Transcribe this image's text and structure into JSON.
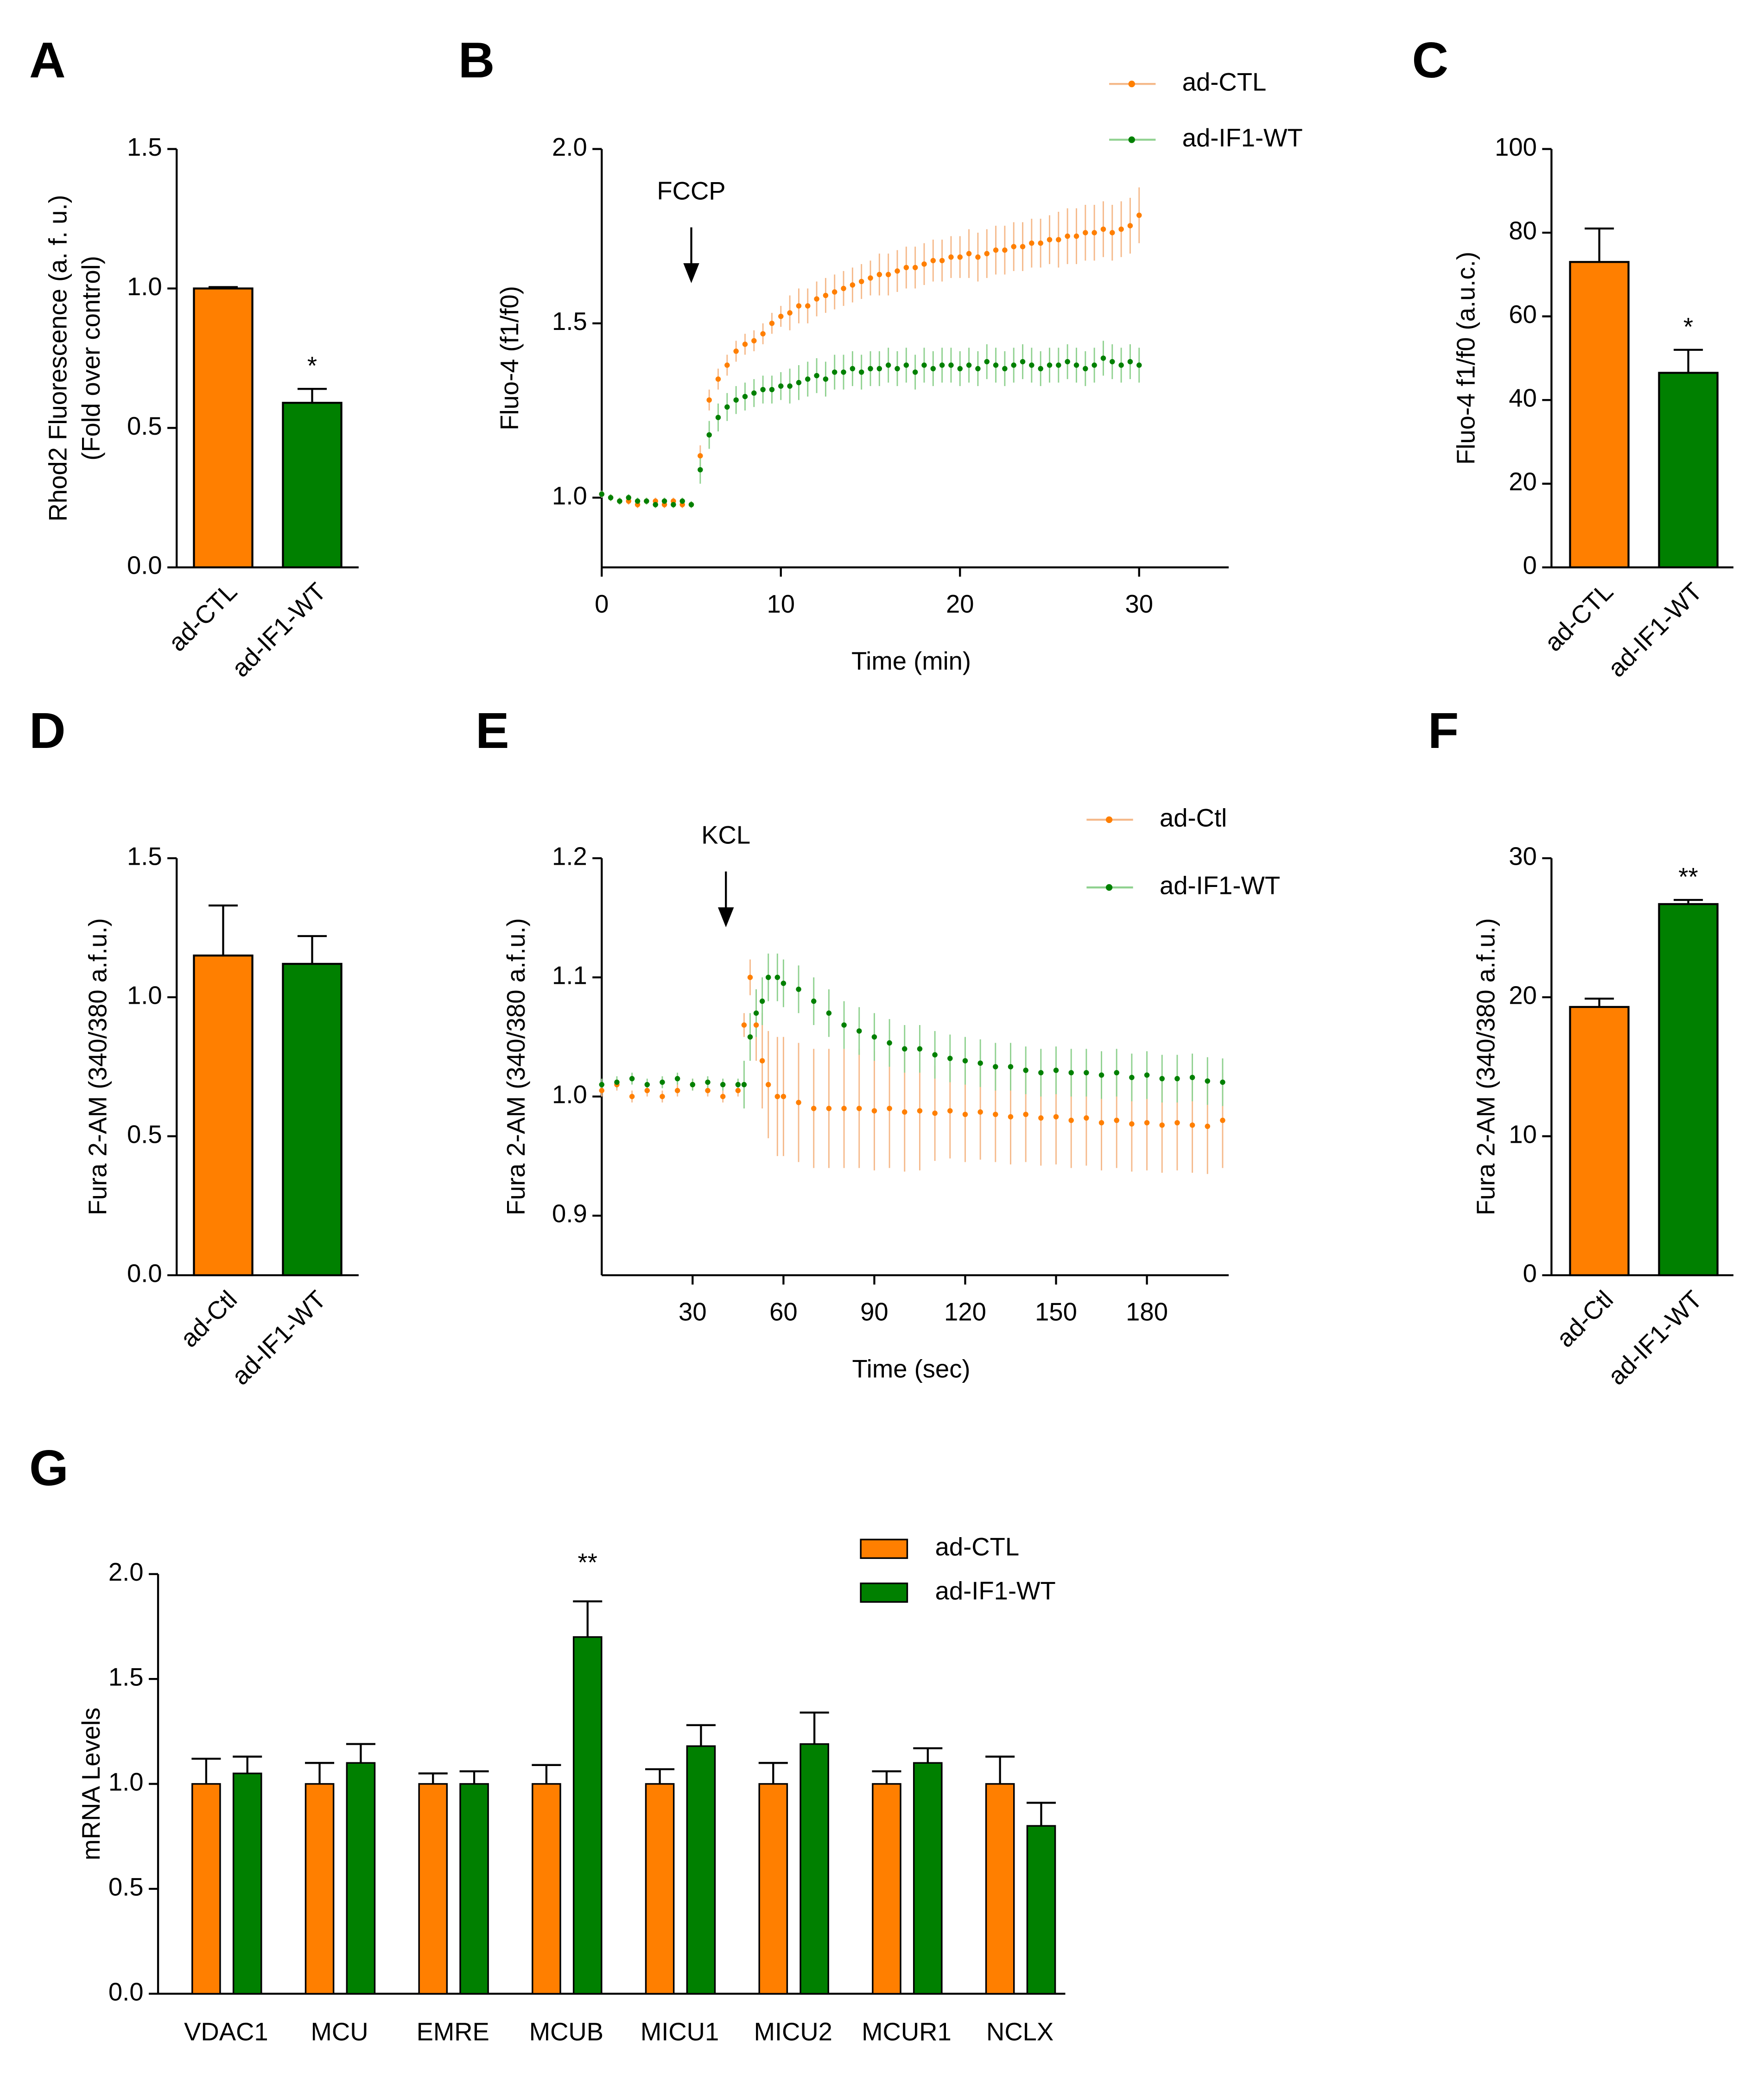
{
  "chart_data": [
    {
      "type": "bar",
      "panel": "A",
      "ylabel": [
        "Rhod2 Fluorescence (a. f. u.)",
        "(Fold over control)"
      ],
      "categories": [
        "ad-CTL",
        "ad-IF1-WT"
      ],
      "values": [
        1.0,
        0.59
      ],
      "errors": [
        0.005,
        0.05
      ],
      "colors": [
        "#ff7f00",
        "#008000"
      ],
      "stars": [
        null,
        "*"
      ],
      "ylim": [
        0,
        1.5
      ],
      "yticks": [
        {
          "value": 0,
          "label": "0.0"
        },
        {
          "value": 0.5,
          "label": "0.5"
        },
        {
          "value": 1,
          "label": "1.0"
        },
        {
          "value": 1.5,
          "label": "1.5"
        }
      ]
    },
    {
      "type": "line",
      "panel": "B",
      "ylabel": "Fluo-4 (f1/f0)",
      "xlabel": "Time (min)",
      "x": [
        0,
        0.5,
        1,
        1.5,
        2,
        2.5,
        3,
        3.5,
        4,
        4.5,
        5,
        5.5,
        6,
        6.5,
        7,
        7.5,
        8,
        8.5,
        9,
        9.5,
        10,
        10.5,
        11,
        11.5,
        12,
        12.5,
        13,
        13.5,
        14,
        14.5,
        15,
        15.5,
        16,
        16.5,
        17,
        17.5,
        18,
        18.5,
        19,
        19.5,
        20,
        20.5,
        21,
        21.5,
        22,
        22.5,
        23,
        23.5,
        24,
        24.5,
        25,
        25.5,
        26,
        26.5,
        27,
        27.5,
        28,
        28.5,
        29,
        29.5,
        30
      ],
      "series": [
        {
          "name": "ad-CTL",
          "color": "#ff7f00",
          "values": [
            1.01,
            1.0,
            0.99,
            0.99,
            0.98,
            0.99,
            0.99,
            0.98,
            0.99,
            0.98,
            0.98,
            1.12,
            1.28,
            1.34,
            1.38,
            1.42,
            1.44,
            1.45,
            1.47,
            1.5,
            1.52,
            1.53,
            1.55,
            1.55,
            1.57,
            1.58,
            1.59,
            1.6,
            1.61,
            1.62,
            1.63,
            1.64,
            1.64,
            1.65,
            1.66,
            1.66,
            1.67,
            1.68,
            1.68,
            1.69,
            1.69,
            1.7,
            1.69,
            1.7,
            1.71,
            1.71,
            1.72,
            1.72,
            1.73,
            1.73,
            1.74,
            1.74,
            1.75,
            1.75,
            1.76,
            1.76,
            1.77,
            1.76,
            1.77,
            1.78,
            1.81
          ],
          "errors": [
            0.01,
            0.01,
            0.01,
            0.01,
            0.01,
            0.01,
            0.01,
            0.01,
            0.01,
            0.01,
            0.01,
            0.03,
            0.03,
            0.03,
            0.03,
            0.03,
            0.03,
            0.03,
            0.03,
            0.03,
            0.03,
            0.05,
            0.05,
            0.05,
            0.05,
            0.05,
            0.05,
            0.05,
            0.05,
            0.05,
            0.05,
            0.06,
            0.06,
            0.06,
            0.06,
            0.06,
            0.06,
            0.06,
            0.06,
            0.06,
            0.06,
            0.07,
            0.07,
            0.07,
            0.07,
            0.07,
            0.07,
            0.07,
            0.07,
            0.07,
            0.07,
            0.08,
            0.08,
            0.08,
            0.08,
            0.08,
            0.08,
            0.08,
            0.08,
            0.08,
            0.08
          ]
        },
        {
          "name": "ad-IF1-WT",
          "color": "#008000",
          "values": [
            1.01,
            1.0,
            0.99,
            1.0,
            0.99,
            0.99,
            0.98,
            0.99,
            0.98,
            0.99,
            0.98,
            1.08,
            1.18,
            1.23,
            1.26,
            1.28,
            1.29,
            1.3,
            1.31,
            1.31,
            1.32,
            1.32,
            1.33,
            1.34,
            1.35,
            1.34,
            1.36,
            1.36,
            1.37,
            1.36,
            1.37,
            1.37,
            1.38,
            1.37,
            1.38,
            1.36,
            1.38,
            1.37,
            1.38,
            1.38,
            1.37,
            1.38,
            1.37,
            1.39,
            1.38,
            1.37,
            1.38,
            1.39,
            1.38,
            1.37,
            1.38,
            1.38,
            1.39,
            1.38,
            1.37,
            1.38,
            1.4,
            1.39,
            1.38,
            1.39,
            1.38
          ],
          "errors": [
            0.01,
            0.01,
            0.01,
            0.01,
            0.01,
            0.01,
            0.01,
            0.01,
            0.01,
            0.01,
            0.01,
            0.04,
            0.04,
            0.04,
            0.04,
            0.04,
            0.04,
            0.04,
            0.04,
            0.04,
            0.04,
            0.05,
            0.05,
            0.05,
            0.05,
            0.05,
            0.05,
            0.05,
            0.05,
            0.05,
            0.05,
            0.05,
            0.05,
            0.05,
            0.05,
            0.05,
            0.05,
            0.05,
            0.05,
            0.05,
            0.05,
            0.05,
            0.05,
            0.05,
            0.05,
            0.05,
            0.05,
            0.05,
            0.05,
            0.05,
            0.05,
            0.05,
            0.05,
            0.05,
            0.05,
            0.05,
            0.05,
            0.05,
            0.05,
            0.05,
            0.05
          ]
        }
      ],
      "annotation": {
        "text": "FCCP",
        "x": 5
      },
      "xlim": [
        0,
        35
      ],
      "xticks": [
        0,
        10,
        20,
        30
      ],
      "ylim": [
        0.8,
        2.0
      ],
      "yticks": [
        {
          "value": 1,
          "label": "1.0"
        },
        {
          "value": 1.5,
          "label": "1.5"
        },
        {
          "value": 2,
          "label": "2.0"
        }
      ]
    },
    {
      "type": "bar",
      "panel": "C",
      "ylabel": "Fluo-4 f1/f0 (a.u.c.)",
      "categories": [
        "ad-CTL",
        "ad-IF1-WT"
      ],
      "values": [
        73,
        46.5
      ],
      "errors": [
        8,
        5.5
      ],
      "colors": [
        "#ff7f00",
        "#008000"
      ],
      "stars": [
        null,
        "*"
      ],
      "ylim": [
        0,
        100
      ],
      "yticks": [
        0,
        20,
        40,
        60,
        80,
        100
      ]
    },
    {
      "type": "bar",
      "panel": "D",
      "ylabel": "Fura 2-AM (340/380 a.f.u.)",
      "categories": [
        "ad-Ctl",
        "ad-IF1-WT"
      ],
      "values": [
        1.15,
        1.12
      ],
      "errors": [
        0.18,
        0.1
      ],
      "colors": [
        "#ff7f00",
        "#008000"
      ],
      "ylim": [
        0,
        1.5
      ],
      "yticks": [
        {
          "value": 0,
          "label": "0.0"
        },
        {
          "value": 0.5,
          "label": "0.5"
        },
        {
          "value": 1,
          "label": "1.0"
        },
        {
          "value": 1.5,
          "label": "1.5"
        }
      ]
    },
    {
      "type": "line",
      "panel": "E",
      "ylabel": "Fura 2-AM (340/380 a.f.u.)",
      "xlabel": "Time (sec)",
      "x": [
        0,
        5,
        10,
        15,
        20,
        25,
        30,
        35,
        40,
        45,
        47,
        49,
        51,
        53,
        55,
        58,
        60,
        65,
        70,
        75,
        80,
        85,
        90,
        95,
        100,
        105,
        110,
        115,
        120,
        125,
        130,
        135,
        140,
        145,
        150,
        155,
        160,
        165,
        170,
        175,
        180,
        185,
        190,
        195,
        200,
        205
      ],
      "series": [
        {
          "name": "ad-Ctl",
          "color": "#ff7f00",
          "values": [
            1.005,
            1.01,
            1.0,
            1.005,
            1.0,
            1.005,
            1.01,
            1.005,
            1.0,
            1.005,
            1.06,
            1.1,
            1.06,
            1.03,
            1.01,
            1.0,
            1.0,
            0.995,
            0.99,
            0.99,
            0.99,
            0.99,
            0.988,
            0.99,
            0.987,
            0.988,
            0.986,
            0.988,
            0.985,
            0.987,
            0.985,
            0.983,
            0.985,
            0.982,
            0.983,
            0.98,
            0.982,
            0.978,
            0.98,
            0.977,
            0.978,
            0.976,
            0.978,
            0.976,
            0.975,
            0.98
          ],
          "errors": [
            0.005,
            0.005,
            0.005,
            0.005,
            0.005,
            0.005,
            0.005,
            0.005,
            0.005,
            0.005,
            0.01,
            0.015,
            0.03,
            0.04,
            0.045,
            0.05,
            0.05,
            0.05,
            0.05,
            0.05,
            0.05,
            0.05,
            0.05,
            0.05,
            0.05,
            0.05,
            0.04,
            0.04,
            0.04,
            0.04,
            0.04,
            0.04,
            0.04,
            0.04,
            0.04,
            0.04,
            0.04,
            0.04,
            0.04,
            0.04,
            0.04,
            0.04,
            0.04,
            0.04,
            0.04,
            0.04
          ]
        },
        {
          "name": "ad-IF1-WT",
          "color": "#008000",
          "values": [
            1.01,
            1.012,
            1.015,
            1.01,
            1.012,
            1.015,
            1.01,
            1.012,
            1.01,
            1.01,
            1.01,
            1.05,
            1.07,
            1.08,
            1.1,
            1.1,
            1.095,
            1.09,
            1.08,
            1.07,
            1.06,
            1.055,
            1.05,
            1.045,
            1.04,
            1.04,
            1.035,
            1.032,
            1.03,
            1.028,
            1.025,
            1.025,
            1.022,
            1.02,
            1.022,
            1.02,
            1.02,
            1.018,
            1.02,
            1.016,
            1.018,
            1.015,
            1.015,
            1.016,
            1.013,
            1.012
          ],
          "errors": [
            0.005,
            0.005,
            0.005,
            0.005,
            0.005,
            0.005,
            0.005,
            0.005,
            0.005,
            0.005,
            0.02,
            0.02,
            0.02,
            0.02,
            0.02,
            0.02,
            0.02,
            0.02,
            0.02,
            0.02,
            0.02,
            0.02,
            0.02,
            0.02,
            0.02,
            0.02,
            0.02,
            0.02,
            0.02,
            0.02,
            0.02,
            0.02,
            0.02,
            0.02,
            0.02,
            0.02,
            0.02,
            0.02,
            0.02,
            0.02,
            0.02,
            0.02,
            0.02,
            0.02,
            0.02,
            0.02
          ]
        }
      ],
      "annotation": {
        "text": "KCL",
        "x": 41
      },
      "xlim": [
        0,
        207
      ],
      "xticks": [
        30,
        60,
        90,
        120,
        150,
        180
      ],
      "ylim": [
        0.85,
        1.2
      ],
      "yticks": [
        {
          "value": 0.9,
          "label": "0.9"
        },
        {
          "value": 1,
          "label": "1.0"
        },
        {
          "value": 1.1,
          "label": "1.1"
        },
        {
          "value": 1.2,
          "label": "1.2"
        }
      ]
    },
    {
      "type": "bar",
      "panel": "F",
      "ylabel": "Fura 2-AM (340/380 a.f.u.)",
      "categories": [
        "ad-Ctl",
        "ad-IF1-WT"
      ],
      "values": [
        19.3,
        26.7
      ],
      "errors": [
        0.6,
        0.3
      ],
      "colors": [
        "#ff7f00",
        "#008000"
      ],
      "stars": [
        null,
        "**"
      ],
      "ylim": [
        0,
        30
      ],
      "yticks": [
        0,
        10,
        20,
        30
      ]
    },
    {
      "type": "grouped_bar",
      "panel": "G",
      "ylabel": "mRNA Levels",
      "categories": [
        "VDAC1",
        "MCU",
        "EMRE",
        "MCUB",
        "MICU1",
        "MICU2",
        "MCUR1",
        "NCLX"
      ],
      "series": [
        {
          "name": "ad-CTL",
          "color": "#ff7f00",
          "values": [
            1.0,
            1.0,
            1.0,
            1.0,
            1.0,
            1.0,
            1.0,
            1.0
          ],
          "errors": [
            0.12,
            0.1,
            0.05,
            0.09,
            0.07,
            0.1,
            0.06,
            0.13
          ]
        },
        {
          "name": "ad-IF1-WT",
          "color": "#008000",
          "values": [
            1.05,
            1.1,
            1.0,
            1.7,
            1.18,
            1.19,
            1.1,
            0.8
          ],
          "errors": [
            0.08,
            0.09,
            0.06,
            0.17,
            0.1,
            0.15,
            0.07,
            0.11
          ],
          "stars": [
            null,
            null,
            null,
            "**",
            null,
            null,
            null,
            null
          ]
        }
      ],
      "ylim": [
        0,
        2
      ],
      "yticks": [
        {
          "value": 0,
          "label": "0.0"
        },
        {
          "value": 0.5,
          "label": "0.5"
        },
        {
          "value": 1,
          "label": "1.0"
        },
        {
          "value": 1.5,
          "label": "1.5"
        },
        {
          "value": 2,
          "label": "2.0"
        }
      ]
    }
  ]
}
